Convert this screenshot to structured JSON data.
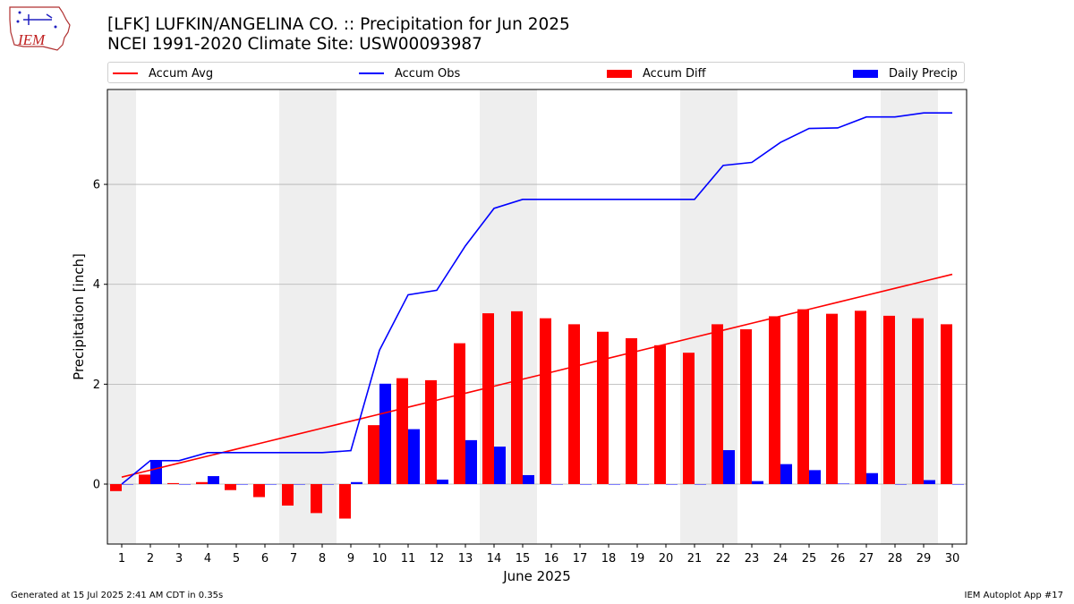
{
  "header": {
    "title_line1": "[LFK] LUFKIN/ANGELINA CO. :: Precipitation for Jun 2025",
    "title_line2": "NCEI 1991-2020 Climate Site: USW00093987",
    "logo_text": "IEM"
  },
  "legend": {
    "items": [
      {
        "label": "Accum Avg",
        "kind": "line",
        "color": "#ff0000"
      },
      {
        "label": "Accum Obs",
        "kind": "line",
        "color": "#0000ff"
      },
      {
        "label": "Accum Diff",
        "kind": "bar",
        "color": "#ff0000"
      },
      {
        "label": "Daily Precip",
        "kind": "bar",
        "color": "#0000ff"
      }
    ]
  },
  "footer": {
    "left": "Generated at 15 Jul 2025 2:41 AM CDT in 0.35s",
    "right": "IEM Autoplot App #17"
  },
  "chart_data": {
    "type": "bar",
    "title": "[LFK] LUFKIN/ANGELINA CO. :: Precipitation for Jun 2025",
    "subtitle": "NCEI 1991-2020 Climate Site: USW00093987",
    "xlabel": "June 2025",
    "ylabel": "Precipitation [inch]",
    "categories": [
      "1",
      "2",
      "3",
      "4",
      "5",
      "6",
      "7",
      "8",
      "9",
      "10",
      "11",
      "12",
      "13",
      "14",
      "15",
      "16",
      "17",
      "18",
      "19",
      "20",
      "21",
      "22",
      "23",
      "24",
      "25",
      "26",
      "27",
      "28",
      "29",
      "30"
    ],
    "ylim": [
      -1.2,
      7.9
    ],
    "yticks": [
      0,
      2,
      4,
      6
    ],
    "grid": "horizontal",
    "legend_position": "top",
    "weekend_shading": [
      [
        1,
        1
      ],
      [
        7,
        8
      ],
      [
        14,
        15
      ],
      [
        21,
        22
      ],
      [
        28,
        29
      ]
    ],
    "series": [
      {
        "name": "Accum Avg",
        "type": "line",
        "color": "#ff0000",
        "values": [
          0.14,
          0.28,
          0.42,
          0.56,
          0.7,
          0.84,
          0.98,
          1.12,
          1.26,
          1.4,
          1.54,
          1.68,
          1.82,
          1.96,
          2.1,
          2.24,
          2.38,
          2.52,
          2.66,
          2.8,
          2.94,
          3.08,
          3.22,
          3.36,
          3.5,
          3.64,
          3.78,
          3.92,
          4.06,
          4.2
        ]
      },
      {
        "name": "Accum Obs",
        "type": "line",
        "color": "#0000ff",
        "values": [
          0.0,
          0.47,
          0.47,
          0.63,
          0.63,
          0.63,
          0.63,
          0.63,
          0.67,
          2.68,
          3.79,
          3.88,
          4.77,
          5.52,
          5.7,
          5.7,
          5.7,
          5.7,
          5.7,
          5.7,
          5.7,
          6.38,
          6.44,
          6.84,
          7.12,
          7.13,
          7.35,
          7.35,
          7.43,
          7.43
        ]
      },
      {
        "name": "Accum Diff",
        "type": "bar",
        "color": "#ff0000",
        "values": [
          -0.14,
          0.19,
          0.02,
          0.04,
          -0.12,
          -0.26,
          -0.43,
          -0.58,
          -0.69,
          1.18,
          2.12,
          2.08,
          2.82,
          3.42,
          3.46,
          3.32,
          3.2,
          3.05,
          2.92,
          2.78,
          2.63,
          3.2,
          3.1,
          3.36,
          3.5,
          3.41,
          3.47,
          3.37,
          3.32,
          3.2
        ]
      },
      {
        "name": "Daily Precip",
        "type": "bar",
        "color": "#0000ff",
        "values": [
          0.0,
          0.47,
          0.0,
          0.16,
          0.0,
          0.0,
          0.0,
          0.0,
          0.04,
          2.01,
          1.1,
          0.09,
          0.88,
          0.75,
          0.18,
          0.0,
          0.0,
          0.0,
          0.0,
          0.0,
          0.0,
          0.68,
          0.06,
          0.4,
          0.28,
          0.01,
          0.22,
          0.0,
          0.08,
          0.0
        ]
      }
    ]
  }
}
